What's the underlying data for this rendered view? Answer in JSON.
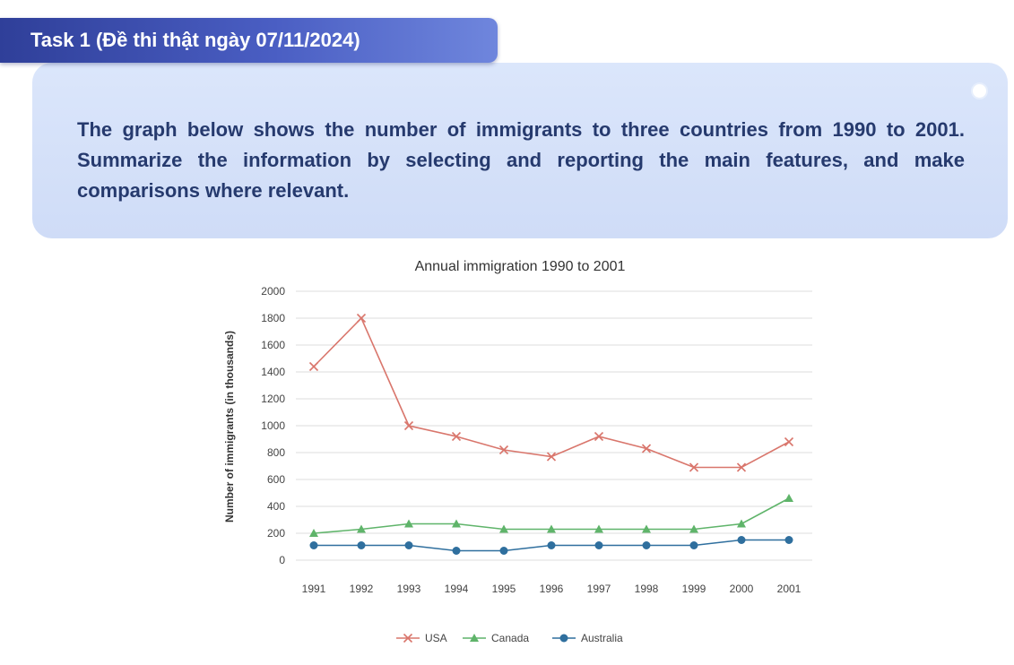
{
  "header": {
    "task_label": "Task 1 (Đề thi thật ngày 07/11/2024)"
  },
  "prompt": {
    "text": "The graph below shows the number of immigrants to three countries from 1990 to 2001. Summarize the information by selecting and reporting the main features, and make comparisons where relevant."
  },
  "colors": {
    "tab_primary": "#3a4fb0",
    "prompt_text": "#263a6e",
    "prompt_background": "#d4e0f8"
  },
  "chart_data": {
    "type": "line",
    "title": "Annual immigration 1990 to 2001",
    "xlabel": "",
    "ylabel": "Number of immigrants (in thousands)",
    "ylim": [
      0,
      2000
    ],
    "yticks": [
      0,
      200,
      400,
      600,
      800,
      1000,
      1200,
      1400,
      1600,
      1800,
      2000
    ],
    "x": [
      "1991",
      "1992",
      "1993",
      "1994",
      "1995",
      "1996",
      "1997",
      "1998",
      "1999",
      "2000",
      "2001"
    ],
    "grid": true,
    "legend_position": "bottom",
    "series": [
      {
        "name": "USA",
        "marker": "x",
        "color": "#d9766c",
        "values": [
          1440,
          1800,
          1000,
          920,
          820,
          770,
          920,
          830,
          690,
          690,
          880
        ]
      },
      {
        "name": "Canada",
        "marker": "triangle",
        "color": "#5fb46a",
        "values": [
          200,
          230,
          270,
          270,
          230,
          230,
          230,
          230,
          230,
          270,
          460
        ]
      },
      {
        "name": "Australia",
        "marker": "circle",
        "color": "#2f6f9e",
        "values": [
          110,
          110,
          110,
          70,
          70,
          110,
          110,
          110,
          110,
          150,
          150
        ]
      }
    ]
  }
}
